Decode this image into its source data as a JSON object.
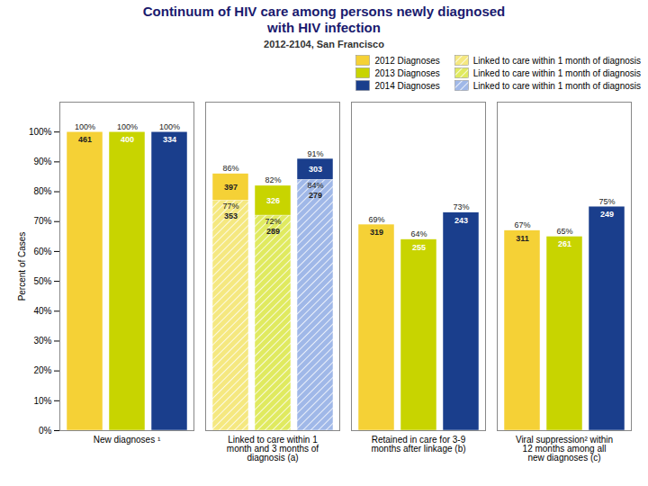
{
  "chart_data": {
    "type": "bar",
    "title": "Continuum of HIV care among persons newly diagnosed\nwith HIV infection",
    "subtitle": "2012-2104, San Francisco",
    "ylabel": "Percent of Cases",
    "categories": [
      "New diagnoses ¹",
      "Linked to care within 1\nmonth and 3 months of\ndiagnosis (a)",
      "Retained in care for 3-9\nmonths after linkage (b)",
      "Viral suppression² within\n12 months among all\nnew diagnoses (c)"
    ],
    "series": [
      {
        "name": "2012 Diagnoses",
        "color": "#f5d136",
        "values": [
          100,
          86,
          69,
          67
        ],
        "value_labels": [
          "100%",
          "86%",
          "69%",
          "67%"
        ],
        "counts": [
          461,
          397,
          319,
          311
        ]
      },
      {
        "name": "2013 Diagnoses",
        "color": "#c8d400",
        "values": [
          100,
          82,
          64,
          65
        ],
        "value_labels": [
          "100%",
          "82%",
          "64%",
          "65%"
        ],
        "counts": [
          400,
          326,
          255,
          261
        ]
      },
      {
        "name": "2014 Diagnoses",
        "color": "#1a3e8c",
        "values": [
          100,
          91,
          73,
          75
        ],
        "value_labels": [
          "100%",
          "91%",
          "73%",
          "75%"
        ],
        "counts": [
          334,
          303,
          243,
          249
        ]
      },
      {
        "name": "Linked to care within 1 month of diagnosis",
        "type": "hatched_bar",
        "color": "#f5e880",
        "values": [
          null,
          77,
          null,
          null
        ],
        "value_labels": [
          null,
          "77%",
          null,
          null
        ],
        "counts": [
          null,
          353,
          null,
          null
        ]
      },
      {
        "name": "Linked to care within 1 month of diagnosis",
        "type": "hatched_bar",
        "color": "#e0ea60",
        "values": [
          null,
          72,
          null,
          null
        ],
        "value_labels": [
          null,
          "72%",
          null,
          null
        ],
        "counts": [
          null,
          289,
          null,
          null
        ]
      },
      {
        "name": "Linked to care within 1 month of diagnosis",
        "type": "hatched_bar",
        "color": "#a0b8e8",
        "values": [
          null,
          84,
          null,
          null
        ],
        "value_labels": [
          null,
          "84%",
          null,
          null
        ],
        "counts": [
          null,
          279,
          null,
          null
        ]
      }
    ],
    "ylim": [
      0,
      110
    ],
    "yticks": [
      {
        "value": 0,
        "label": "0%"
      },
      {
        "value": 10,
        "label": "10%"
      },
      {
        "value": 20,
        "label": "20%"
      },
      {
        "value": 30,
        "label": "30%"
      },
      {
        "value": 40,
        "label": "40%"
      },
      {
        "value": 50,
        "label": "50%"
      },
      {
        "value": 60,
        "label": "60%"
      },
      {
        "value": 70,
        "label": "70%"
      },
      {
        "value": 80,
        "label": "80%"
      },
      {
        "value": 90,
        "label": "90%"
      },
      {
        "value": 100,
        "label": "100%"
      }
    ],
    "grid": false,
    "legend": "upper right",
    "data_labels": true
  }
}
